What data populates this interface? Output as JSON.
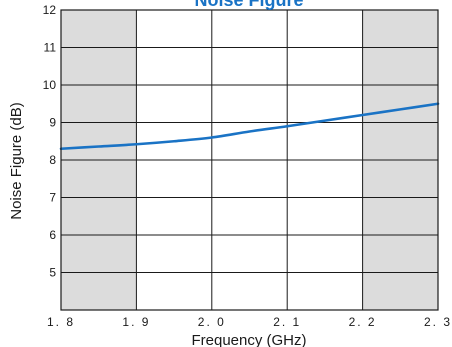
{
  "chart_data": {
    "type": "line",
    "title": "Noise Figure",
    "xlabel": "Frequency (GHz)",
    "ylabel": "Noise Figure (dB)",
    "xlim": [
      1.8,
      2.3
    ],
    "ylim": [
      4,
      12
    ],
    "x_ticks": [
      1.8,
      1.9,
      2.0,
      2.1,
      2.2,
      2.3
    ],
    "x_tick_labels": [
      "1. 8",
      "1. 9",
      "2. 0",
      "2. 1",
      "2. 2",
      "2. 3"
    ],
    "y_ticks": [
      5,
      6,
      7,
      8,
      9,
      10,
      11,
      12
    ],
    "y_tick_labels": [
      "5",
      "6",
      "7",
      "8",
      "9",
      "10",
      "11",
      "12"
    ],
    "grid": true,
    "shaded_regions": [
      [
        1.8,
        1.9
      ],
      [
        2.2,
        2.3
      ]
    ],
    "colors": {
      "line": "#1a73c5",
      "shade": "#dcdcdc",
      "grid": "#1a1a1a",
      "title": "#1a73c5"
    },
    "series": [
      {
        "x": [
          1.8,
          1.85,
          1.9,
          1.95,
          2.0,
          2.05,
          2.1,
          2.15,
          2.2,
          2.25,
          2.3
        ],
        "y": [
          8.3,
          8.36,
          8.42,
          8.5,
          8.6,
          8.76,
          8.9,
          9.05,
          9.2,
          9.35,
          9.5
        ]
      }
    ]
  }
}
